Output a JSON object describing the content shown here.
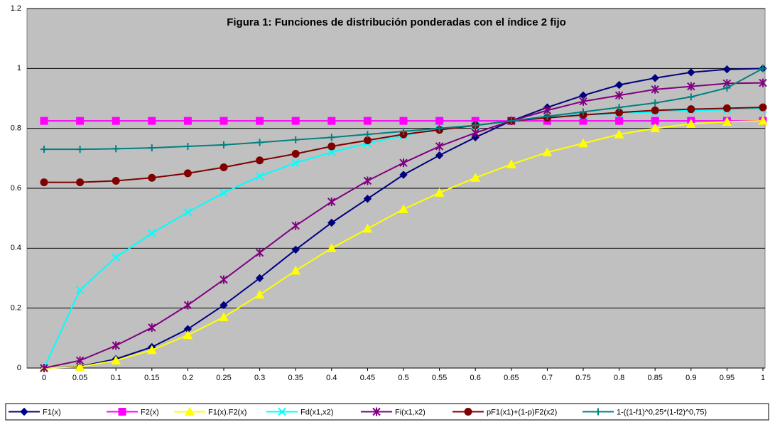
{
  "chart_data": {
    "type": "line",
    "title": "Figura 1: Funciones de distribución ponderadas con el índice 2 fijo",
    "categories": [
      "0",
      "0.05",
      "0.1",
      "0.15",
      "0.2",
      "0.25",
      "0.3",
      "0.35",
      "0.4",
      "0.45",
      "0.5",
      "0.55",
      "0.6",
      "0.65",
      "0.7",
      "0.75",
      "0.8",
      "0.85",
      "0.9",
      "0.95",
      "1"
    ],
    "ylim": [
      0,
      1.2
    ],
    "yticks": [
      0,
      0.2,
      0.4,
      0.6,
      0.8,
      1,
      1.2
    ],
    "grid": true,
    "legend": "bottom",
    "series": [
      {
        "name": "F1(x)",
        "color": "#000080",
        "marker": "diamond",
        "values": [
          0,
          0.005,
          0.03,
          0.07,
          0.13,
          0.21,
          0.3,
          0.395,
          0.485,
          0.565,
          0.645,
          0.71,
          0.77,
          0.825,
          0.87,
          0.91,
          0.945,
          0.968,
          0.987,
          0.997,
          1
        ]
      },
      {
        "name": "F2(x)",
        "color": "#ff00ff",
        "marker": "square",
        "values": [
          0.825,
          0.825,
          0.825,
          0.825,
          0.825,
          0.825,
          0.825,
          0.825,
          0.825,
          0.825,
          0.825,
          0.825,
          0.825,
          0.825,
          0.825,
          0.825,
          0.825,
          0.825,
          0.825,
          0.825,
          0.825
        ]
      },
      {
        "name": "F1(x).F2(x)",
        "color": "#ffff00",
        "marker": "triangle",
        "values": [
          0,
          0.004,
          0.025,
          0.06,
          0.11,
          0.17,
          0.245,
          0.325,
          0.4,
          0.465,
          0.53,
          0.585,
          0.635,
          0.68,
          0.72,
          0.75,
          0.78,
          0.8,
          0.815,
          0.822,
          0.825
        ]
      },
      {
        "name": "Fd(x1,x2)",
        "color": "#00ffff",
        "marker": "x",
        "values": [
          0,
          0.26,
          0.37,
          0.45,
          0.52,
          0.585,
          0.64,
          0.685,
          0.72,
          0.75,
          0.775,
          0.8,
          0.81,
          0.825,
          0.84,
          0.845,
          0.85,
          0.855,
          0.86,
          0.862,
          0.865
        ]
      },
      {
        "name": "Fi(x1,x2)",
        "color": "#800080",
        "marker": "star",
        "values": [
          0,
          0.025,
          0.075,
          0.135,
          0.21,
          0.295,
          0.385,
          0.475,
          0.555,
          0.625,
          0.685,
          0.74,
          0.785,
          0.825,
          0.86,
          0.89,
          0.91,
          0.93,
          0.94,
          0.95,
          0.952
        ]
      },
      {
        "name": "pF1(x1)+(1-p)F2(x2)",
        "color": "#800000",
        "marker": "circle",
        "values": [
          0.62,
          0.62,
          0.625,
          0.635,
          0.65,
          0.67,
          0.693,
          0.715,
          0.74,
          0.76,
          0.78,
          0.795,
          0.81,
          0.825,
          0.835,
          0.845,
          0.853,
          0.86,
          0.864,
          0.867,
          0.87
        ]
      },
      {
        "name": "1-((1-f1)^0,25*(1-f2)^0,75)",
        "color": "#008080",
        "marker": "plus",
        "values": [
          0.73,
          0.73,
          0.732,
          0.735,
          0.74,
          0.745,
          0.753,
          0.762,
          0.77,
          0.78,
          0.79,
          0.8,
          0.81,
          0.825,
          0.84,
          0.855,
          0.87,
          0.885,
          0.905,
          0.935,
          1
        ]
      }
    ]
  }
}
